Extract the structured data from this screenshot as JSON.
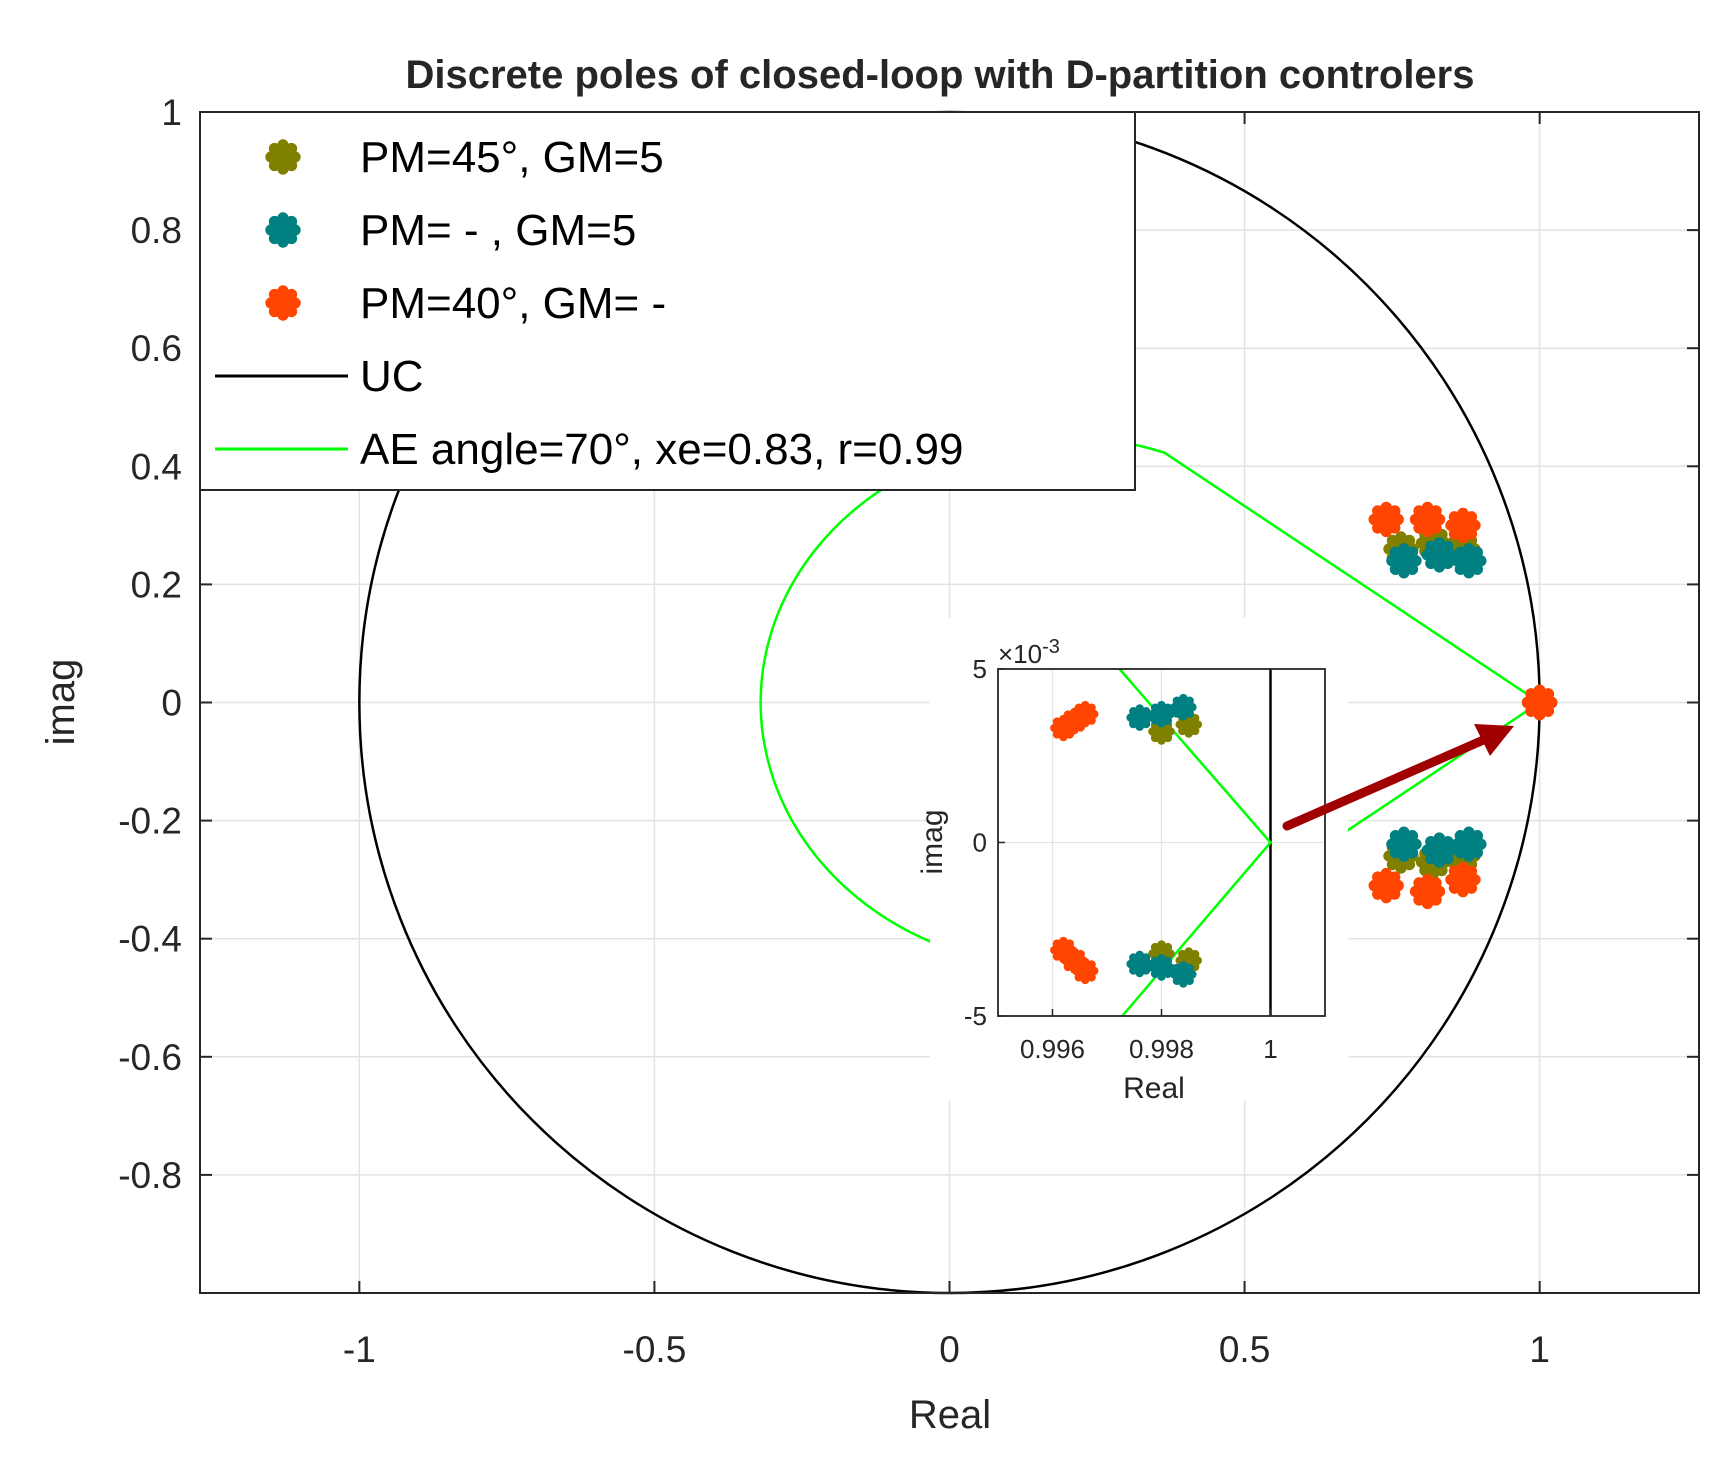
{
  "chart_data": {
    "type": "scatter",
    "title": "Discrete poles of closed-loop with D-partition controlers",
    "xlabel": "Real",
    "ylabel": "imag",
    "xlim": [
      -1.27,
      1.27
    ],
    "ylim": [
      -1.0,
      1.0
    ],
    "grid": true,
    "legend_position": "top-left",
    "xticks": [
      {
        "v": -1,
        "label": "-1"
      },
      {
        "v": -0.5,
        "label": "-0.5"
      },
      {
        "v": 0,
        "label": "0"
      },
      {
        "v": 0.5,
        "label": "0.5"
      },
      {
        "v": 1,
        "label": "1"
      }
    ],
    "yticks": [
      {
        "v": 1,
        "label": "1"
      },
      {
        "v": 0.8,
        "label": "0.8"
      },
      {
        "v": 0.6,
        "label": "0.6"
      },
      {
        "v": 0.4,
        "label": "0.4"
      },
      {
        "v": 0.2,
        "label": "0.2"
      },
      {
        "v": 0,
        "label": "0"
      },
      {
        "v": -0.2,
        "label": "-0.2"
      },
      {
        "v": -0.4,
        "label": "-0.4"
      },
      {
        "v": -0.6,
        "label": "-0.6"
      },
      {
        "v": -0.8,
        "label": "-0.8"
      }
    ],
    "series": [
      {
        "name": "PM=45°, GM=5",
        "color": "#808000",
        "points": [
          [
            0.765,
            0.26
          ],
          [
            0.82,
            0.27
          ],
          [
            0.87,
            0.26
          ],
          [
            0.765,
            -0.26
          ],
          [
            0.82,
            -0.27
          ],
          [
            0.87,
            -0.26
          ],
          [
            0.998,
            0.0032
          ],
          [
            0.9985,
            0.0034
          ],
          [
            0.998,
            -0.0032
          ],
          [
            0.9985,
            -0.0034
          ]
        ]
      },
      {
        "name": "PM=   - , GM=5",
        "color": "#008080",
        "points": [
          [
            0.77,
            0.24
          ],
          [
            0.83,
            0.25
          ],
          [
            0.88,
            0.24
          ],
          [
            0.77,
            -0.24
          ],
          [
            0.83,
            -0.25
          ],
          [
            0.88,
            -0.24
          ],
          [
            0.9976,
            0.0036
          ],
          [
            0.998,
            0.0037
          ],
          [
            0.9984,
            0.0039
          ],
          [
            0.9976,
            -0.0035
          ],
          [
            0.998,
            -0.0036
          ],
          [
            0.9984,
            -0.0038
          ]
        ]
      },
      {
        "name": "PM=40°, GM= -",
        "color": "#ff4500",
        "points": [
          [
            0.74,
            0.31
          ],
          [
            0.81,
            0.31
          ],
          [
            0.87,
            0.3
          ],
          [
            0.74,
            -0.31
          ],
          [
            0.81,
            -0.32
          ],
          [
            0.87,
            -0.3
          ],
          [
            0.9962,
            0.0033
          ],
          [
            0.9964,
            0.0035
          ],
          [
            0.9966,
            0.0037
          ],
          [
            0.9962,
            -0.0031
          ],
          [
            0.9964,
            -0.0034
          ],
          [
            0.9966,
            -0.0037
          ]
        ]
      }
    ],
    "lines": [
      {
        "name": "UC",
        "color": "#000000"
      },
      {
        "name": "AE angle=70°, xe=0.83, r=0.99",
        "color": "#00ff00"
      }
    ],
    "inset": {
      "xlabel": "Real",
      "ylabel": "imag",
      "xlim": [
        0.995,
        1.001
      ],
      "ylim": [
        -0.005,
        0.005
      ],
      "exponent_label": "×10",
      "exponent_power": "-3",
      "xticks": [
        {
          "v": 0.996,
          "label": "0.996"
        },
        {
          "v": 0.998,
          "label": "0.998"
        },
        {
          "v": 1.0,
          "label": "1"
        }
      ],
      "yticks": [
        {
          "v": 0.005,
          "label": "5"
        },
        {
          "v": 0,
          "label": "0"
        },
        {
          "v": -0.005,
          "label": "-5"
        }
      ]
    }
  }
}
